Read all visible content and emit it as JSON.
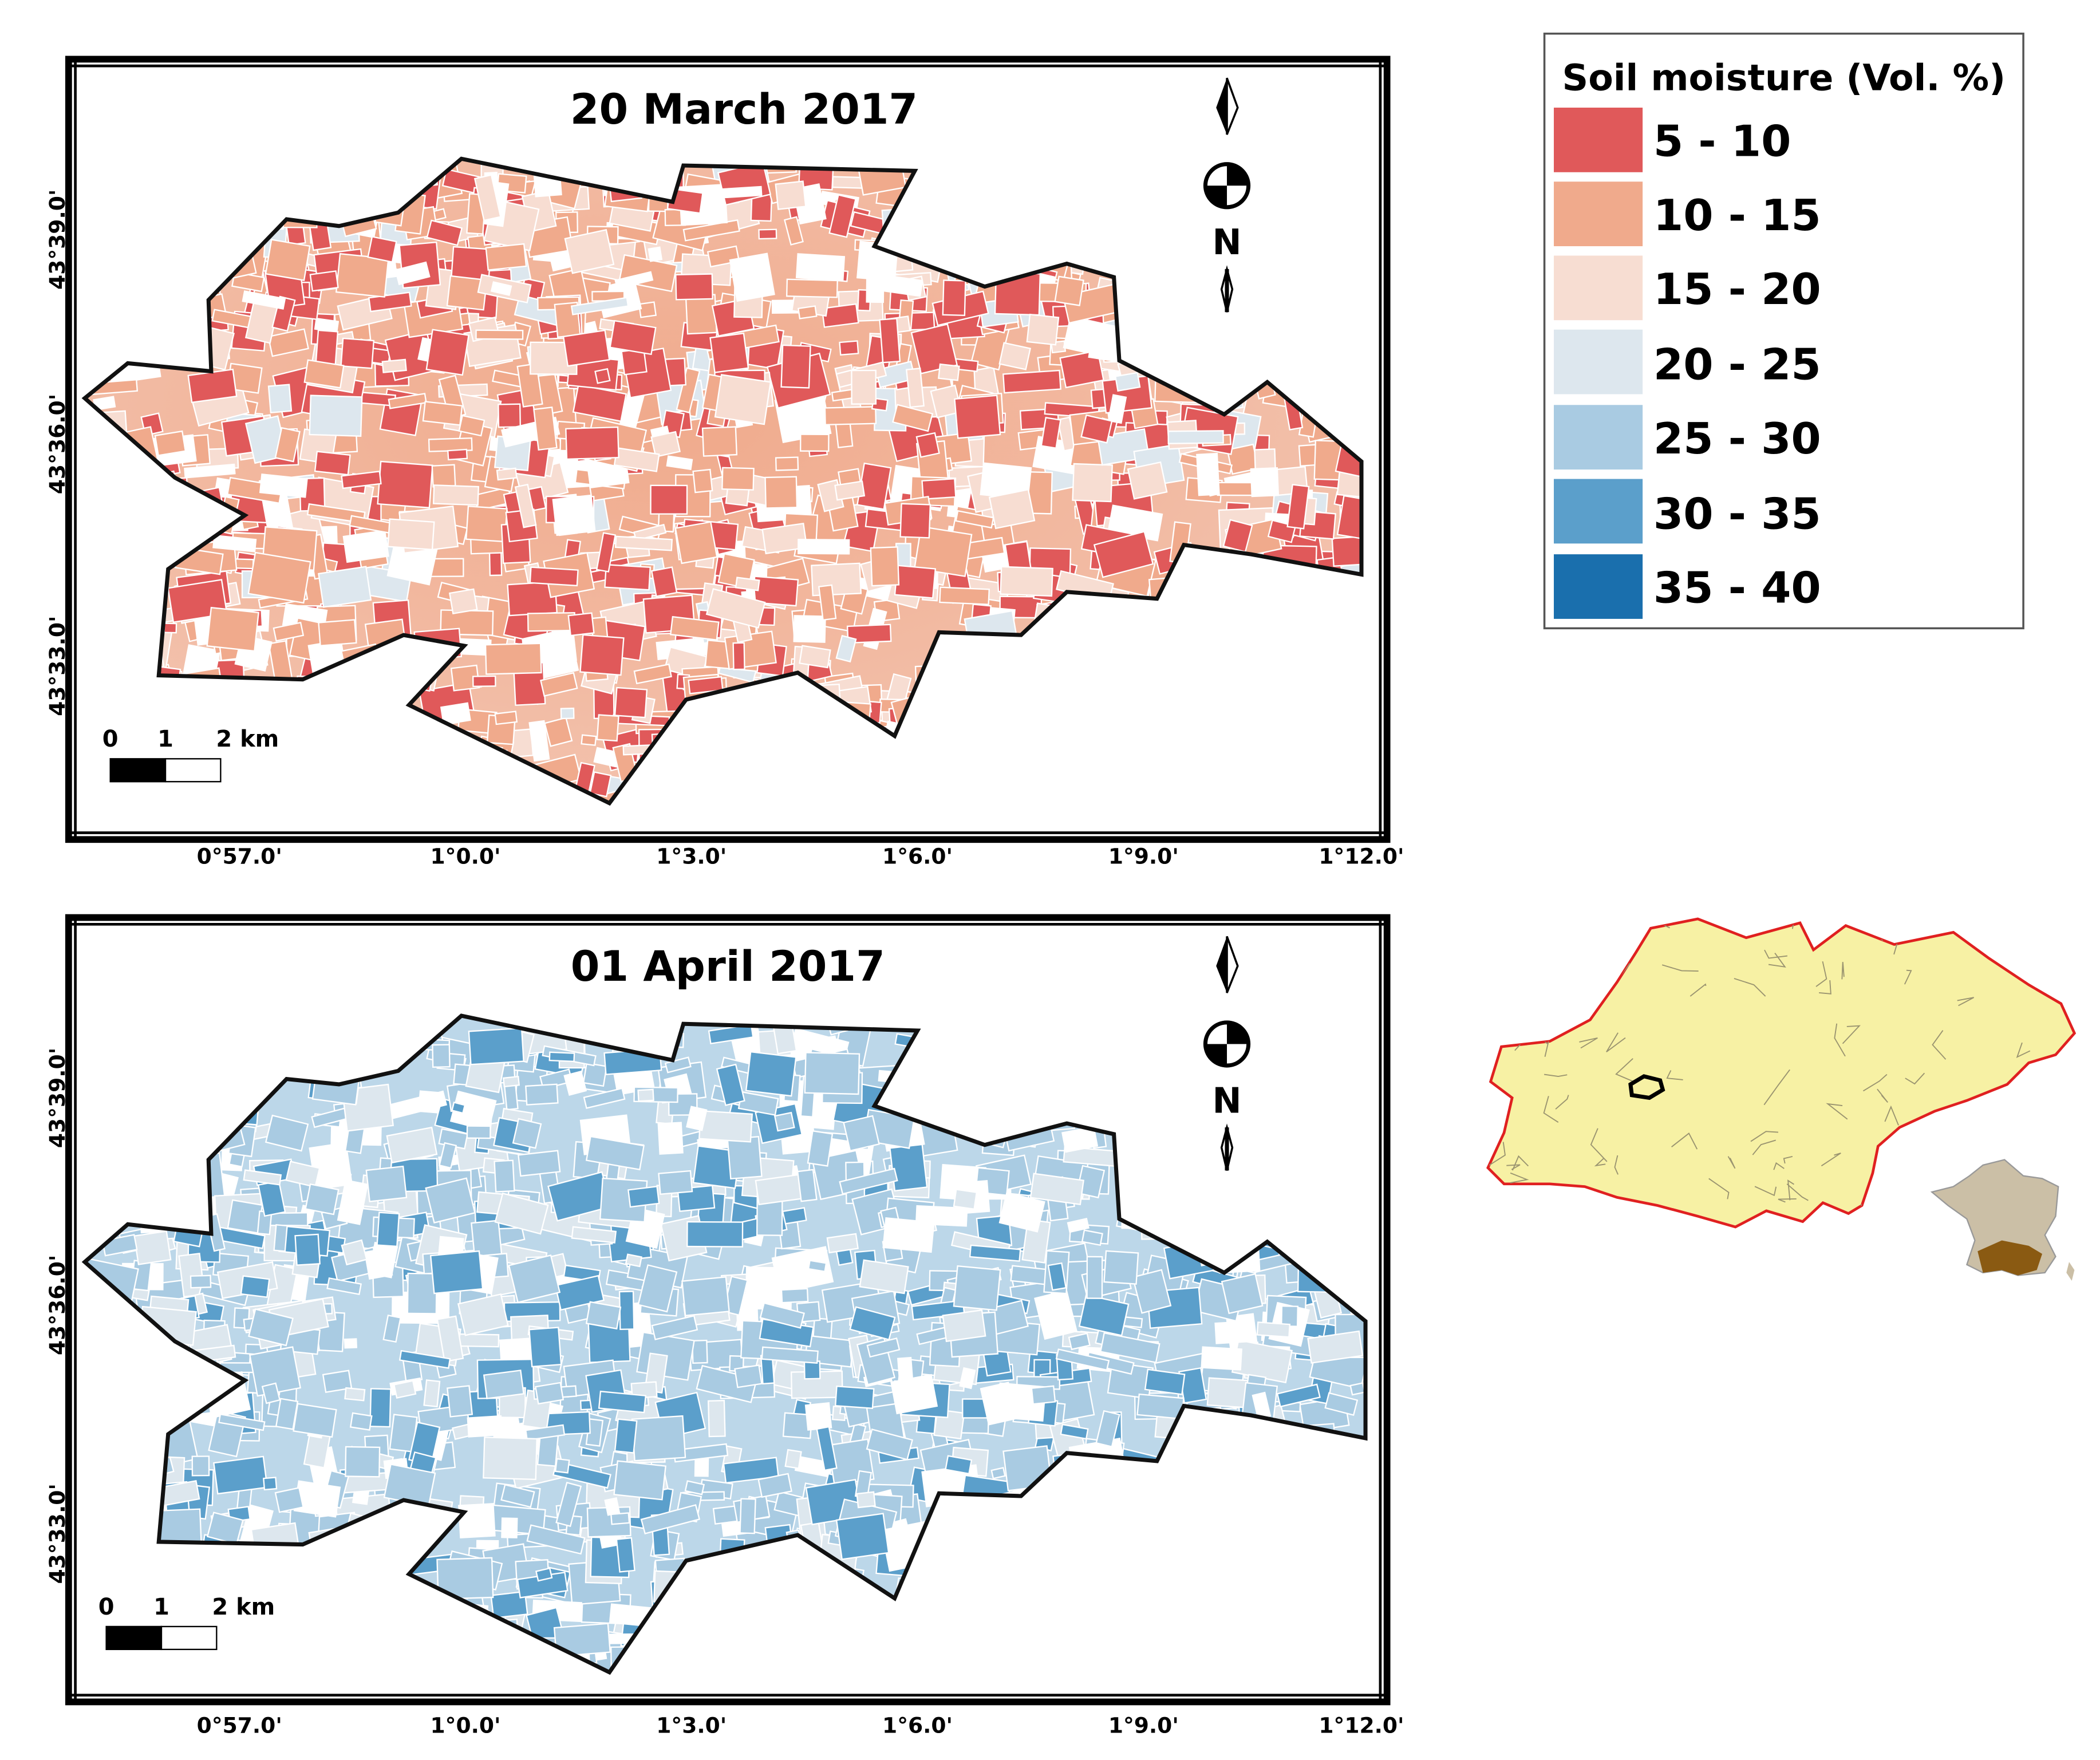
{
  "legend": {
    "title": "Soil moisture (Vol. %)",
    "classes": [
      {
        "label": "5 - 10",
        "color": "#e0595a"
      },
      {
        "label": "10 - 15",
        "color": "#f0aa8c"
      },
      {
        "label": "15 - 20",
        "color": "#f7ddd2"
      },
      {
        "label": "20 - 25",
        "color": "#dde7ee"
      },
      {
        "label": "25 - 30",
        "color": "#a9cbe2"
      },
      {
        "label": "30 - 35",
        "color": "#5b9fcb"
      },
      {
        "label": "35 - 40",
        "color": "#1a6fad"
      }
    ]
  },
  "maps": [
    {
      "title": "20 March 2017",
      "lat_labels": [
        "43°39.0'",
        "43°36.0'",
        "43°33.0'"
      ],
      "lon_labels": [
        "0°57.0'",
        "1°0.0'",
        "1°3.0'",
        "1°6.0'",
        "1°9.0'",
        "1°12.0'"
      ],
      "scale": {
        "t0": "0",
        "t1": "1",
        "t2": "2 km"
      },
      "north": "N"
    },
    {
      "title": "01 April 2017",
      "lat_labels": [
        "43°39.0'",
        "43°36.0'",
        "43°33.0'"
      ],
      "lon_labels": [
        "0°57.0'",
        "1°0.0'",
        "1°3.0'",
        "1°6.0'",
        "1°9.0'",
        "1°12.0'"
      ],
      "scale": {
        "t0": "0",
        "t1": "1",
        "t2": "2 km"
      },
      "north": "N"
    }
  ],
  "inset": {
    "region_color": "#f7f1a4",
    "region_border": "#e02020",
    "france_color": "#cbbfa6",
    "highlight_color": "#8a5a12"
  }
}
